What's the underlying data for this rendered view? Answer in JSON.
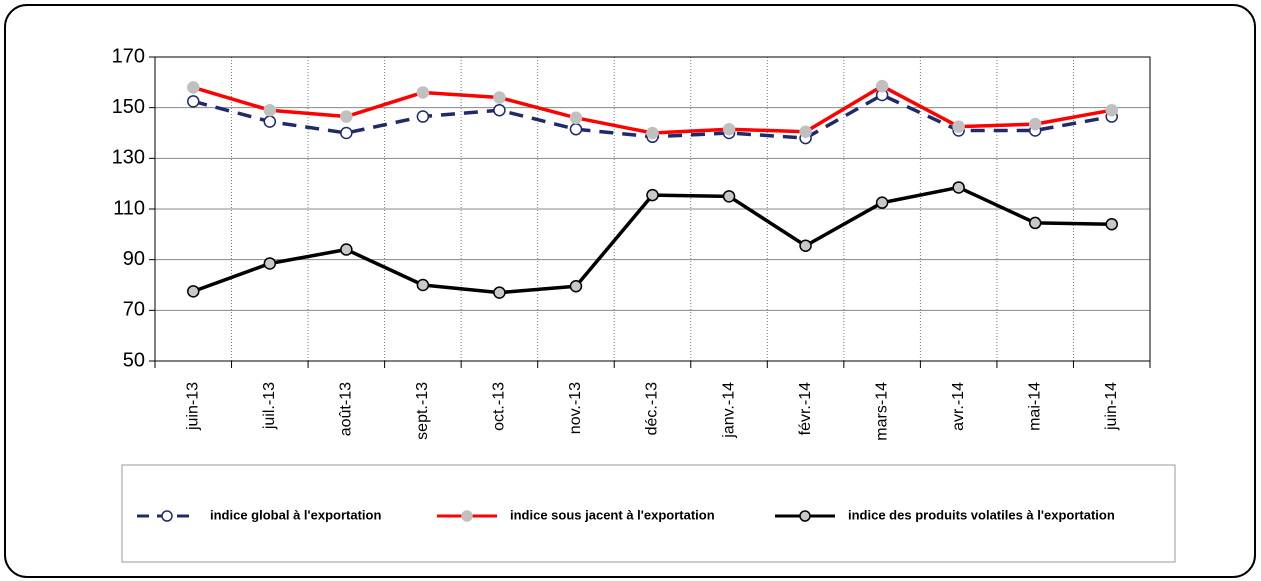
{
  "chart_data": {
    "type": "line",
    "categories": [
      "juin-13",
      "juil.-13",
      "août-13",
      "sept.-13",
      "oct.-13",
      "nov.-13",
      "déc.-13",
      "janv.-14",
      "févr.-14",
      "mars-14",
      "avr.-14",
      "mai-14",
      "juin-14"
    ],
    "series": [
      {
        "name": "indice global à l'exportation",
        "color": "#1f2a6b",
        "marker_color": "#ffffff",
        "dashed": true,
        "values": [
          152.5,
          144.5,
          140,
          146.5,
          149,
          141.5,
          138.5,
          140,
          138,
          155,
          141,
          141,
          146.5
        ]
      },
      {
        "name": "indice sous jacent à l'exportation",
        "color": "#ff0000",
        "marker_color": "#c0c0c0",
        "dashed": false,
        "values": [
          158,
          149,
          146.5,
          156,
          154,
          146,
          140,
          141.5,
          140.5,
          158.5,
          142.5,
          143.5,
          149
        ]
      },
      {
        "name": "indice des produits volatiles à l'exportation",
        "color": "#000000",
        "marker_color": "#c8c8c8",
        "dashed": false,
        "values": [
          77.5,
          88.5,
          94,
          80,
          77,
          79.5,
          115.5,
          115,
          95.5,
          112.5,
          118.5,
          104.5,
          104
        ]
      }
    ],
    "ylim": [
      50,
      170
    ],
    "yticks": [
      50,
      70,
      90,
      110,
      130,
      150,
      170
    ],
    "grid": true
  }
}
